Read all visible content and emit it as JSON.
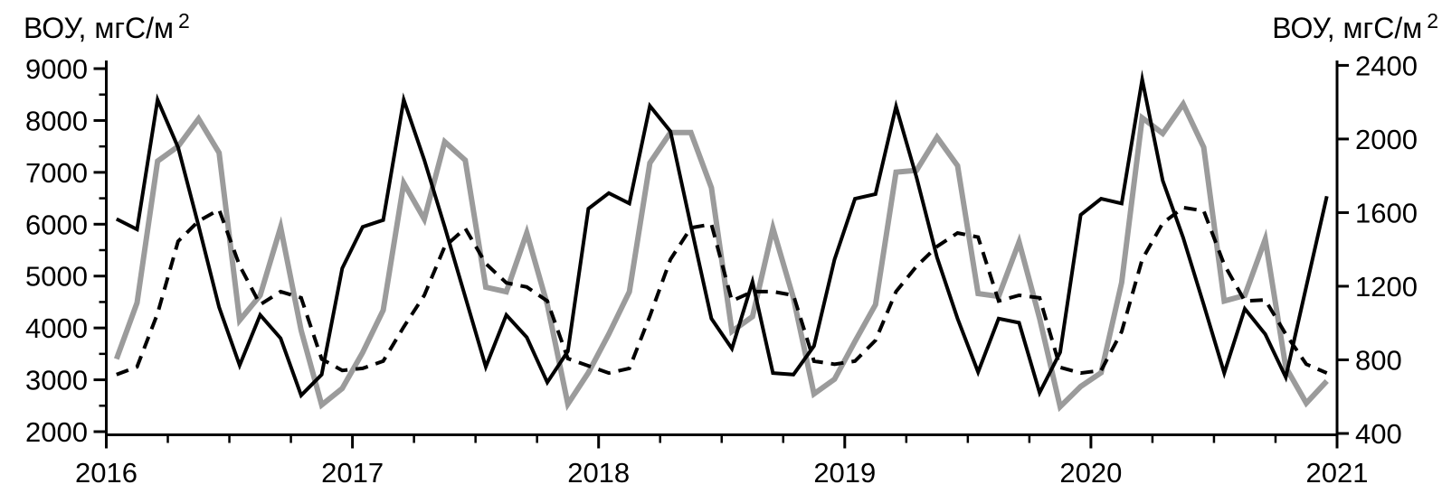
{
  "colors": {
    "background": "#ffffff",
    "axis": "#000000",
    "series_black": "#000000",
    "series_gray": "#9b9b9b",
    "series_dashed": "#000000"
  },
  "chart_data": {
    "type": "line",
    "grid": false,
    "legend_position": "none",
    "y_axis_left": {
      "label": "ВОУ, мгС/м",
      "label_superscript": "2",
      "min": 2000,
      "max": 9000,
      "major_tick_step": 1000,
      "minor_tick_step": 500,
      "tick_labels": [
        "2000",
        "3000",
        "4000",
        "5000",
        "6000",
        "7000",
        "8000",
        "9000"
      ]
    },
    "y_axis_right": {
      "label": "ВОУ, мгС/м",
      "label_superscript": "2",
      "min": 400,
      "max": 2400,
      "major_tick_step": 400,
      "tick_labels": [
        "400",
        "800",
        "1200",
        "1600",
        "2000",
        "2400"
      ]
    },
    "x_axis": {
      "start": "2016-01",
      "frequency": "monthly",
      "points_per_year": 12,
      "minor_ticks_per_year": 4,
      "year_labels": [
        "2016",
        "2017",
        "2018",
        "2019",
        "2020",
        "2021"
      ]
    },
    "series": [
      {
        "id": "solid-black",
        "name": "black solid line",
        "axis": "left",
        "style": "solid",
        "color": "#000000",
        "width": 4,
        "values": [
          6100,
          5900,
          8400,
          7480,
          5970,
          4400,
          3280,
          4250,
          3800,
          2700,
          3100,
          5150,
          5950,
          6080,
          8400,
          7240,
          5950,
          4600,
          3250,
          4250,
          3820,
          2950,
          3550,
          6300,
          6600,
          6400,
          8280,
          7790,
          5970,
          4180,
          3600,
          4890,
          3130,
          3100,
          3650,
          5320,
          6490,
          6580,
          8270,
          6900,
          5360,
          4180,
          3150,
          4180,
          4100,
          2750,
          3530,
          6180,
          6490,
          6400,
          8790,
          6840,
          5740,
          4450,
          3130,
          4370,
          3880,
          3050,
          4800,
          6540
        ]
      },
      {
        "id": "solid-gray",
        "name": "gray solid line",
        "axis": "right",
        "style": "solid",
        "color": "#9b9b9b",
        "width": 6,
        "values": [
          805,
          1110,
          1880,
          1960,
          2110,
          1925,
          1015,
          1150,
          1520,
          960,
          555,
          645,
          840,
          1070,
          1760,
          1565,
          1985,
          1885,
          1195,
          1170,
          1490,
          1100,
          560,
          730,
          940,
          1170,
          1870,
          2035,
          2035,
          1735,
          955,
          1035,
          1515,
          1135,
          615,
          695,
          900,
          1100,
          1820,
          1830,
          2010,
          1855,
          1160,
          1145,
          1440,
          1025,
          545,
          655,
          730,
          1220,
          2115,
          2030,
          2190,
          1955,
          1120,
          1150,
          1455,
          760,
          565,
          685
        ]
      },
      {
        "id": "dashed-black",
        "name": "black dashed line",
        "axis": "left",
        "style": "dashed",
        "color": "#000000",
        "width": 4,
        "dash": "14 9",
        "values": [
          3100,
          3250,
          4280,
          5670,
          6060,
          6280,
          5200,
          4450,
          4700,
          4580,
          3400,
          3180,
          3220,
          3360,
          4020,
          4630,
          5570,
          5920,
          5240,
          4870,
          4790,
          4520,
          3410,
          3270,
          3130,
          3220,
          4230,
          5320,
          5930,
          6000,
          4520,
          4700,
          4700,
          4630,
          3360,
          3300,
          3360,
          3760,
          4700,
          5190,
          5570,
          5830,
          5750,
          4520,
          4630,
          4580,
          3240,
          3130,
          3180,
          3930,
          5320,
          6020,
          6320,
          6260,
          5220,
          4520,
          4540,
          3880,
          3300,
          3130
        ]
      }
    ]
  }
}
